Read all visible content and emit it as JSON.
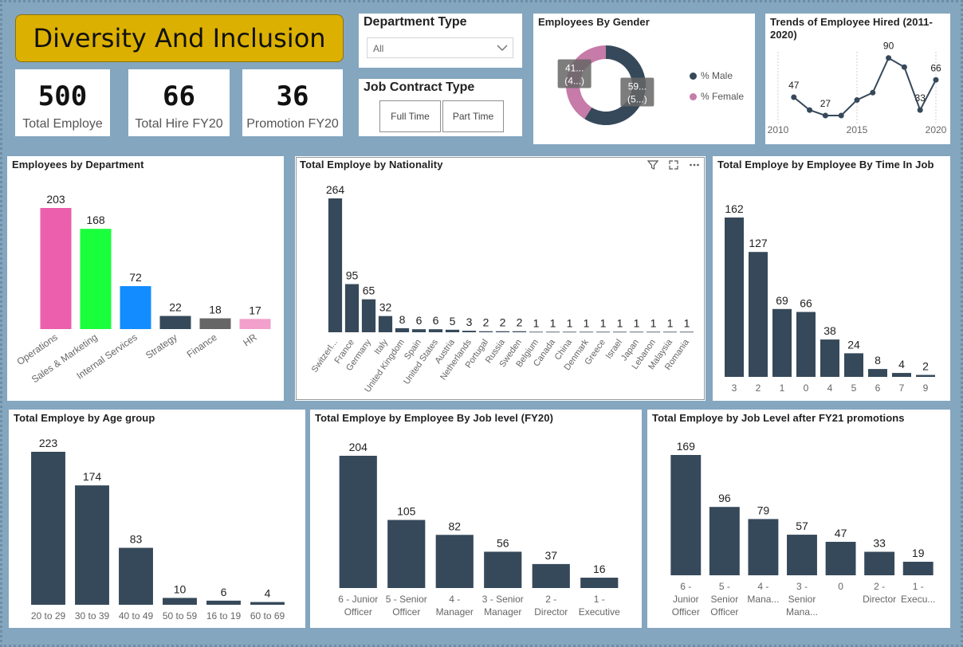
{
  "title": "Diversity And Inclusion",
  "kpis": [
    {
      "value": "500",
      "label": "Total Employe"
    },
    {
      "value": "66",
      "label": "Total Hire FY20"
    },
    {
      "value": "36",
      "label": "Promotion FY20"
    }
  ],
  "department_slicer": {
    "title": "Department Type",
    "selected": "All"
  },
  "contract_slicer": {
    "title": "Job Contract Type",
    "buttons": [
      "Full Time",
      "Part Time"
    ]
  },
  "colors": {
    "bar": "#36495a",
    "accent": "#dcb000",
    "male": "#36495a",
    "female": "#c67ba8"
  },
  "chart_data": [
    {
      "id": "gender",
      "type": "pie",
      "title": "Employees By Gender",
      "slices": [
        {
          "name": "% Male",
          "value": 59,
          "label": "59...",
          "sublabel": "(5...)",
          "color": "#36495a"
        },
        {
          "name": "% Female",
          "value": 41,
          "label": "41...",
          "sublabel": "(4...)",
          "color": "#c67ba8"
        }
      ],
      "legend": "right"
    },
    {
      "id": "hired",
      "type": "line",
      "title": "Trends of Employee Hired (2011-2020)",
      "x": [
        2011,
        2012,
        2013,
        2014,
        2015,
        2016,
        2017,
        2018,
        2019,
        2020
      ],
      "values": [
        47,
        33,
        27,
        27,
        44,
        52,
        90,
        80,
        33,
        66
      ],
      "data_labels": [
        {
          "index": 0,
          "text": "47"
        },
        {
          "index": 2,
          "text": "27"
        },
        {
          "index": 6,
          "text": "90"
        },
        {
          "index": 8,
          "text": "33"
        },
        {
          "index": 9,
          "text": "66"
        }
      ],
      "x_ticks": [
        "2010",
        "2015",
        "2020"
      ],
      "xlim": [
        2010,
        2020
      ],
      "ylim": [
        20,
        95
      ]
    },
    {
      "id": "dept",
      "type": "bar",
      "title": "Employees by Department",
      "categories": [
        "Operations",
        "Sales & Marketing",
        "Internal Services",
        "Strategy",
        "Finance",
        "HR"
      ],
      "values": [
        203,
        168,
        72,
        22,
        18,
        17
      ],
      "colors": [
        "#ec5fad",
        "#19ff3c",
        "#128cff",
        "#36495a",
        "#666666",
        "#f2a0cc"
      ],
      "label_rotation": -35
    },
    {
      "id": "nationality",
      "type": "bar",
      "title": "Total Employe by Nationality",
      "categories": [
        "Switzerl...",
        "France",
        "Germany",
        "Italy",
        "United Kingdom",
        "Spain",
        "United States",
        "Austria",
        "Netherlands",
        "Portugal",
        "Russia",
        "Sweden",
        "Belgium",
        "Canada",
        "China",
        "Denmark",
        "Greece",
        "Israel",
        "Japan",
        "Lebanon",
        "Malaysia",
        "Romania"
      ],
      "values": [
        264,
        95,
        65,
        32,
        8,
        6,
        6,
        5,
        3,
        2,
        2,
        2,
        1,
        1,
        1,
        1,
        1,
        1,
        1,
        1,
        1,
        1
      ],
      "label_rotation": -55
    },
    {
      "id": "timeinjob",
      "type": "bar",
      "title": "Total Employe by Employee By Time In Job",
      "categories": [
        "3",
        "2",
        "1",
        "0",
        "4",
        "5",
        "6",
        "7",
        "9"
      ],
      "values": [
        162,
        127,
        69,
        66,
        38,
        24,
        8,
        4,
        2
      ]
    },
    {
      "id": "age",
      "type": "bar",
      "title": "Total Employe by Age group",
      "categories": [
        "20 to 29",
        "30 to 39",
        "40 to 49",
        "50 to 59",
        "16 to 19",
        "60 to 69"
      ],
      "values": [
        223,
        174,
        83,
        10,
        6,
        4
      ]
    },
    {
      "id": "joblevel",
      "type": "bar",
      "title": "Total Employe by Employee By Job level (FY20)",
      "categories": [
        [
          "6 - Junior",
          "Officer"
        ],
        [
          "5 - Senior",
          "Officer"
        ],
        [
          "4 -",
          "Manager"
        ],
        [
          "3 - Senior",
          "Manager"
        ],
        [
          "2 -",
          "Director"
        ],
        [
          "1 -",
          "Executive"
        ]
      ],
      "values": [
        204,
        105,
        82,
        56,
        37,
        16
      ]
    },
    {
      "id": "joblevel21",
      "type": "bar",
      "title": "Total Employe by Job Level after FY21 promotions",
      "categories": [
        [
          "6 -",
          "Junior",
          "Officer"
        ],
        [
          "5 -",
          "Senior",
          "Officer"
        ],
        [
          "4 -",
          "Mana..."
        ],
        [
          "3 -",
          "Senior",
          "Mana..."
        ],
        [
          "0"
        ],
        [
          "2 -",
          "Director"
        ],
        [
          "1 -",
          "Execu..."
        ]
      ],
      "values": [
        169,
        96,
        79,
        57,
        47,
        33,
        19
      ]
    }
  ]
}
